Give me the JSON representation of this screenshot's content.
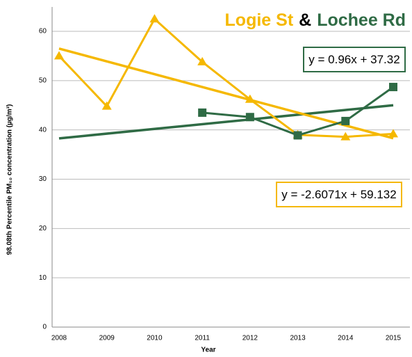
{
  "chart_data": {
    "type": "line",
    "title_parts": [
      {
        "text": "Logie St",
        "color": "#f5b800"
      },
      {
        "text": "&",
        "color": "#000000"
      },
      {
        "text": "Lochee Rd",
        "color": "#2f6b45"
      }
    ],
    "y_label": "98.08th Percentile  PM₁₀ concentration (µg/m³)",
    "x_label": "Year",
    "categories": [
      "2008",
      "2009",
      "2010",
      "2011",
      "2012",
      "2013",
      "2014",
      "2015"
    ],
    "series": [
      {
        "name": "Logie St",
        "color": "#f5b800",
        "marker": "triangle",
        "values": [
          55,
          44.8,
          62.5,
          53.8,
          46.2,
          39,
          38.6,
          39.2
        ]
      },
      {
        "name": "Lochee Rd",
        "color": "#2f6b45",
        "marker": "square",
        "values": [
          null,
          null,
          null,
          43.5,
          42.6,
          38.9,
          41.8,
          48.7
        ]
      }
    ],
    "trendlines": [
      {
        "color": "#2f6b45",
        "label": "y = 0.96x + 37.32",
        "values": [
          38.28,
          45
        ]
      },
      {
        "color": "#f5b800",
        "label": "y = -2.6071x + 59.132",
        "values": [
          56.5,
          38.3
        ]
      }
    ],
    "ylim": [
      0,
      60
    ],
    "yticks": [
      0,
      10,
      20,
      30,
      40,
      50,
      60
    ],
    "grid": true
  }
}
